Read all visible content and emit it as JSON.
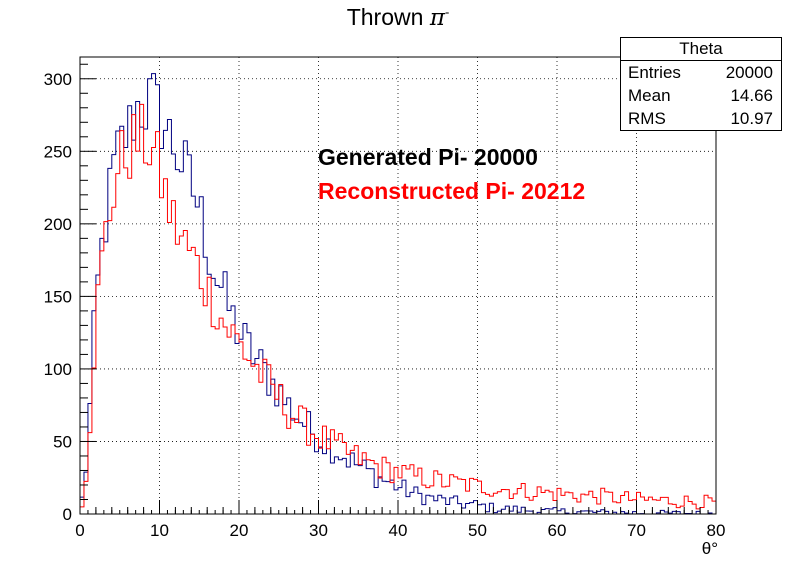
{
  "title": {
    "text": "Thrown ",
    "symbol": "π",
    "superscript": "-"
  },
  "stats": {
    "name": "Theta",
    "rows": [
      {
        "label": "Entries",
        "value": "20000"
      },
      {
        "label": "Mean",
        "value": "14.66"
      },
      {
        "label": "RMS",
        "value": "10.97"
      }
    ]
  },
  "annotations": {
    "generated": "Generated Pi- 20000",
    "reconstructed": "Reconstructed Pi- 20212"
  },
  "colors": {
    "generated": "#000080",
    "reconstructed": "#ff0000",
    "generated_text": "#000000",
    "reconstructed_text": "#ff0000"
  },
  "chart_data": {
    "type": "histogram",
    "title": "Thrown π-",
    "xlabel": "θ°",
    "ylabel": "",
    "xlim": [
      0,
      80
    ],
    "ylim": [
      0,
      315
    ],
    "xticks": [
      0,
      10,
      20,
      30,
      40,
      50,
      60,
      70,
      80
    ],
    "yticks": [
      0,
      50,
      100,
      150,
      200,
      250,
      300
    ],
    "grid": true,
    "bin_width": 0.5,
    "series": [
      {
        "values_at_x": [
          [
            0.5,
            20
          ],
          [
            1,
            45
          ],
          [
            1.5,
            100
          ],
          [
            2,
            145
          ],
          [
            2.5,
            170
          ],
          [
            3,
            195
          ],
          [
            3.5,
            210
          ],
          [
            4,
            230
          ],
          [
            4.5,
            245
          ],
          [
            5,
            250
          ],
          [
            5.5,
            260
          ],
          [
            6,
            262
          ],
          [
            6.5,
            270
          ],
          [
            7,
            278
          ],
          [
            7.5,
            282
          ],
          [
            8,
            280
          ],
          [
            8.5,
            282
          ],
          [
            9,
            287
          ],
          [
            9.5,
            280
          ],
          [
            10,
            275
          ],
          [
            10.5,
            270
          ],
          [
            11,
            262
          ],
          [
            11.5,
            258
          ],
          [
            12,
            252
          ],
          [
            12.5,
            245
          ],
          [
            13,
            240
          ],
          [
            13.5,
            233
          ],
          [
            14,
            226
          ],
          [
            14.5,
            220
          ],
          [
            15,
            210
          ],
          [
            15.5,
            198
          ],
          [
            16,
            185
          ],
          [
            16.5,
            175
          ],
          [
            17,
            165
          ],
          [
            17.5,
            160
          ],
          [
            18,
            152
          ],
          [
            18.5,
            145
          ],
          [
            19,
            138
          ],
          [
            19.5,
            130
          ],
          [
            20,
            125
          ],
          [
            21,
            116
          ],
          [
            22,
            108
          ],
          [
            23,
            100
          ],
          [
            24,
            92
          ],
          [
            25,
            85
          ],
          [
            26,
            76
          ],
          [
            27,
            70
          ],
          [
            28,
            64
          ],
          [
            29,
            58
          ],
          [
            30,
            53
          ],
          [
            32,
            45
          ],
          [
            34,
            37
          ],
          [
            36,
            30
          ],
          [
            38,
            24
          ],
          [
            40,
            19
          ],
          [
            42,
            14
          ],
          [
            44,
            11
          ],
          [
            46,
            9
          ],
          [
            48,
            7
          ],
          [
            50,
            6
          ],
          [
            52,
            4
          ],
          [
            55,
            3
          ],
          [
            58,
            2
          ],
          [
            62,
            1.5
          ],
          [
            66,
            1
          ],
          [
            70,
            0.8
          ],
          [
            75,
            0.5
          ],
          [
            80,
            0.3
          ]
        ]
      },
      {
        "values_at_x": [
          [
            0.5,
            18
          ],
          [
            1,
            40
          ],
          [
            1.5,
            92
          ],
          [
            2,
            135
          ],
          [
            2.5,
            160
          ],
          [
            3,
            185
          ],
          [
            3.5,
            200
          ],
          [
            4,
            218
          ],
          [
            4.5,
            232
          ],
          [
            5,
            240
          ],
          [
            5.5,
            246
          ],
          [
            6,
            250
          ],
          [
            6.5,
            254
          ],
          [
            7,
            257
          ],
          [
            7.5,
            258
          ],
          [
            8,
            257
          ],
          [
            8.5,
            255
          ],
          [
            9,
            252
          ],
          [
            9.5,
            245
          ],
          [
            10,
            235
          ],
          [
            10.5,
            225
          ],
          [
            11,
            215
          ],
          [
            11.5,
            205
          ],
          [
            12,
            198
          ],
          [
            12.5,
            193
          ],
          [
            13,
            188
          ],
          [
            14,
            178
          ],
          [
            15,
            168
          ],
          [
            16,
            155
          ],
          [
            17,
            145
          ],
          [
            18,
            132
          ],
          [
            19,
            125
          ],
          [
            20,
            118
          ],
          [
            21,
            110
          ],
          [
            22,
            102
          ],
          [
            23,
            95
          ],
          [
            24,
            88
          ],
          [
            25,
            80
          ],
          [
            26,
            73
          ],
          [
            27,
            67
          ],
          [
            28,
            62
          ],
          [
            29,
            58
          ],
          [
            30,
            54
          ],
          [
            32,
            47
          ],
          [
            34,
            41
          ],
          [
            36,
            36
          ],
          [
            38,
            32
          ],
          [
            40,
            29
          ],
          [
            42,
            26
          ],
          [
            44,
            24
          ],
          [
            46,
            22
          ],
          [
            48,
            21
          ],
          [
            50,
            19
          ],
          [
            52,
            18
          ],
          [
            55,
            16
          ],
          [
            58,
            15
          ],
          [
            62,
            13
          ],
          [
            66,
            12
          ],
          [
            70,
            10
          ],
          [
            75,
            9
          ],
          [
            80,
            8
          ]
        ]
      }
    ]
  }
}
